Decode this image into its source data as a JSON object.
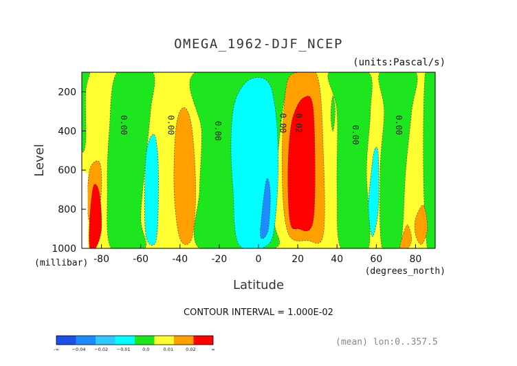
{
  "chart_data": {
    "type": "heatmap",
    "title": "OMEGA_1962-DJF_NCEP",
    "subtitle": "(units:Pascal/s)",
    "xlabel": "Latitude",
    "xunit": "(degrees_north)",
    "ylabel": "Level",
    "yunit": "(millibar)",
    "xlim": [
      -90,
      90
    ],
    "ylim": [
      1000,
      100
    ],
    "xticks": [
      "-80",
      "-60",
      "-40",
      "-20",
      "0",
      "20",
      "40",
      "60",
      "80"
    ],
    "yticks": [
      "200",
      "400",
      "600",
      "800",
      "1000"
    ],
    "contour_interval_label": "CONTOUR INTERVAL = 1.000E-02",
    "footnote": "(mean) lon:0..357.5",
    "colorbar": {
      "labels": [
        "-∞",
        "−0.04",
        "−0.02",
        "−0.01",
        "0.0",
        "0.01",
        "0.02",
        "∞"
      ],
      "colors": [
        "#1e50e6",
        "#1e8cff",
        "#32c8ff",
        "#00ffff",
        "#1ee61e",
        "#ffff32",
        "#ffa000",
        "#ff0000"
      ]
    },
    "contour_labels": [
      {
        "text": "0.00",
        "lat": -70,
        "level": 370
      },
      {
        "text": "0.00",
        "lat": -46,
        "level": 370
      },
      {
        "text": "0.00",
        "lat": -22,
        "level": 400
      },
      {
        "text": "0.00",
        "lat": 11,
        "level": 360
      },
      {
        "text": "0.02",
        "lat": 19,
        "level": 360
      },
      {
        "text": "0.00",
        "lat": 48,
        "level": 420
      },
      {
        "text": "0.00",
        "lat": 70,
        "level": 370
      }
    ],
    "regions": [
      {
        "name": "band-green-west",
        "color": "#1ee61e",
        "values": [
          [
            -72,
            100
          ],
          [
            -54,
            100
          ],
          [
            -55,
            300
          ],
          [
            -58,
            600
          ],
          [
            -60,
            850
          ],
          [
            -58,
            1000
          ],
          [
            -75,
            1000
          ],
          [
            -77,
            700
          ],
          [
            -76,
            400
          ]
        ]
      },
      {
        "name": "band-green-south",
        "color": "#1ee61e",
        "values": [
          [
            -32,
            100
          ],
          [
            20,
            100
          ],
          [
            14,
            200
          ],
          [
            10,
            500
          ],
          [
            8,
            850
          ],
          [
            8,
            1000
          ],
          [
            -30,
            1000
          ],
          [
            -30,
            700
          ],
          [
            -29,
            400
          ]
        ]
      },
      {
        "name": "band-green-north-a",
        "color": "#1ee61e",
        "values": [
          [
            36,
            100
          ],
          [
            56,
            100
          ],
          [
            57,
            300
          ],
          [
            55,
            600
          ],
          [
            56,
            1000
          ],
          [
            42,
            1000
          ],
          [
            40,
            700
          ],
          [
            40,
            300
          ]
        ]
      },
      {
        "name": "band-green-north-b",
        "color": "#1ee61e",
        "values": [
          [
            62,
            100
          ],
          [
            80,
            100
          ],
          [
            78,
            300
          ],
          [
            75,
            600
          ],
          [
            72,
            1000
          ],
          [
            63,
            1000
          ],
          [
            62,
            600
          ],
          [
            64,
            300
          ]
        ]
      },
      {
        "name": "band-green-pole",
        "color": "#1ee61e",
        "values": [
          [
            85,
            100
          ],
          [
            90,
            100
          ],
          [
            90,
            1000
          ],
          [
            86,
            1000
          ],
          [
            84,
            600
          ]
        ]
      },
      {
        "name": "green-sw-corner",
        "color": "#1ee61e",
        "values": [
          [
            -90,
            100
          ],
          [
            -86,
            100
          ],
          [
            -88,
            200
          ],
          [
            -88,
            450
          ],
          [
            -90,
            480
          ]
        ]
      },
      {
        "name": "cyan-west",
        "color": "#00ffff",
        "values": [
          [
            -57,
            500
          ],
          [
            -53,
            420
          ],
          [
            -51,
            600
          ],
          [
            -52,
            950
          ],
          [
            -57,
            950
          ],
          [
            -58,
            750
          ]
        ]
      },
      {
        "name": "orange-west",
        "color": "#ffa000",
        "values": [
          [
            -42,
            380
          ],
          [
            -38,
            280
          ],
          [
            -34,
            380
          ],
          [
            -32,
            700
          ],
          [
            -34,
            950
          ],
          [
            -40,
            950
          ],
          [
            -43,
            700
          ]
        ]
      },
      {
        "name": "cyan-equator",
        "color": "#00ffff",
        "values": [
          [
            -12,
            250
          ],
          [
            -5,
            140
          ],
          [
            4,
            140
          ],
          [
            8,
            250
          ],
          [
            10,
            500
          ],
          [
            9,
            800
          ],
          [
            5,
            980
          ],
          [
            -10,
            980
          ],
          [
            -13,
            700
          ],
          [
            -14,
            450
          ]
        ]
      },
      {
        "name": "blue-equator",
        "color": "#1e8cff",
        "values": [
          [
            1,
            900
          ],
          [
            4,
            650
          ],
          [
            6,
            720
          ],
          [
            5,
            900
          ],
          [
            2,
            950
          ]
        ]
      },
      {
        "name": "orange-equatorial-north",
        "color": "#ffa000",
        "values": [
          [
            14,
            180
          ],
          [
            20,
            100
          ],
          [
            30,
            120
          ],
          [
            33,
            500
          ],
          [
            33,
            930
          ],
          [
            25,
            960
          ],
          [
            15,
            920
          ],
          [
            12,
            600
          ]
        ]
      },
      {
        "name": "red-core",
        "color": "#ff0000",
        "values": [
          [
            17,
            350
          ],
          [
            23,
            230
          ],
          [
            28,
            300
          ],
          [
            28,
            850
          ],
          [
            20,
            900
          ],
          [
            16,
            860
          ],
          [
            15,
            600
          ]
        ]
      },
      {
        "name": "cyan-north",
        "color": "#00ffff",
        "values": [
          [
            57,
            650
          ],
          [
            59,
            500
          ],
          [
            61,
            520
          ],
          [
            61,
            800
          ],
          [
            58,
            940
          ],
          [
            56,
            800
          ]
        ]
      },
      {
        "name": "orange-north",
        "color": "#ffa000",
        "values": [
          [
            74,
            920
          ],
          [
            76,
            880
          ],
          [
            78,
            950
          ],
          [
            76,
            1000
          ],
          [
            72,
            1000
          ]
        ]
      },
      {
        "name": "orange-north-b",
        "color": "#ffa000",
        "values": [
          [
            80,
            850
          ],
          [
            84,
            780
          ],
          [
            86,
            900
          ],
          [
            83,
            980
          ],
          [
            80,
            930
          ]
        ]
      },
      {
        "name": "orange-south-pole",
        "color": "#ffa000",
        "values": [
          [
            -86,
            600
          ],
          [
            -81,
            560
          ],
          [
            -80,
            700
          ],
          [
            -83,
            900
          ],
          [
            -87,
            820
          ]
        ]
      },
      {
        "name": "red-south-pole",
        "color": "#ff0000",
        "values": [
          [
            -86,
            850
          ],
          [
            -84,
            680
          ],
          [
            -81,
            720
          ],
          [
            -80,
            900
          ],
          [
            -83,
            1000
          ],
          [
            -86,
            1000
          ]
        ]
      },
      {
        "name": "green-north-spot",
        "color": "#1ee61e",
        "values": [
          [
            37,
            280
          ],
          [
            38,
            220
          ],
          [
            39,
            300
          ],
          [
            38,
            400
          ],
          [
            37,
            350
          ]
        ]
      }
    ]
  }
}
